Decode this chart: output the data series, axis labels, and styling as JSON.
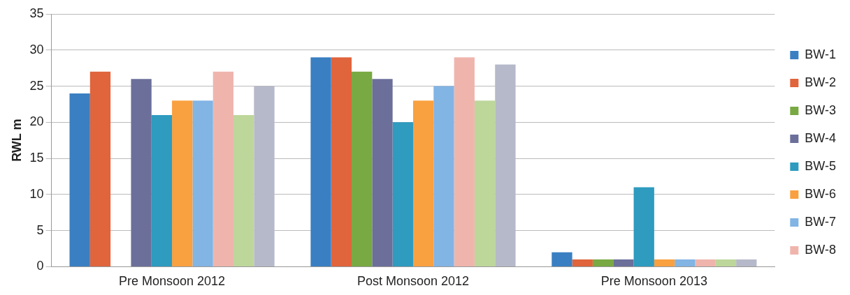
{
  "chart_data": {
    "type": "bar",
    "ylabel": "RWL m",
    "categories": [
      "Pre Monsoon 2012",
      "Post Monsoon 2012",
      "Pre Monsoon 2013"
    ],
    "series": [
      {
        "name": "BW-1",
        "color": "#3a7fc1",
        "values": [
          24,
          29,
          2
        ]
      },
      {
        "name": "BW-2",
        "color": "#e0643c",
        "values": [
          27,
          29,
          1
        ]
      },
      {
        "name": "BW-3",
        "color": "#78a942",
        "values": [
          null,
          27,
          1
        ]
      },
      {
        "name": "BW-4",
        "color": "#6b6f9a",
        "values": [
          26,
          26,
          1
        ]
      },
      {
        "name": "BW-5",
        "color": "#2e9bbf",
        "values": [
          21,
          20,
          11
        ]
      },
      {
        "name": "BW-6",
        "color": "#f9a040",
        "values": [
          23,
          23,
          1
        ]
      },
      {
        "name": "BW-7",
        "color": "#82b4e4",
        "values": [
          23,
          25,
          1
        ]
      },
      {
        "name": "BW-8",
        "color": "#efb5ad",
        "values": [
          27,
          29,
          1
        ]
      },
      {
        "color": "#bdd69a",
        "values": [
          21,
          23,
          1
        ]
      },
      {
        "color": "#b6b9c9",
        "values": [
          25,
          28,
          1
        ]
      }
    ],
    "ylim": [
      0,
      35
    ],
    "yticks": [
      0,
      5,
      10,
      15,
      20,
      25,
      30,
      35
    ],
    "grid": "y",
    "legend": "right"
  }
}
